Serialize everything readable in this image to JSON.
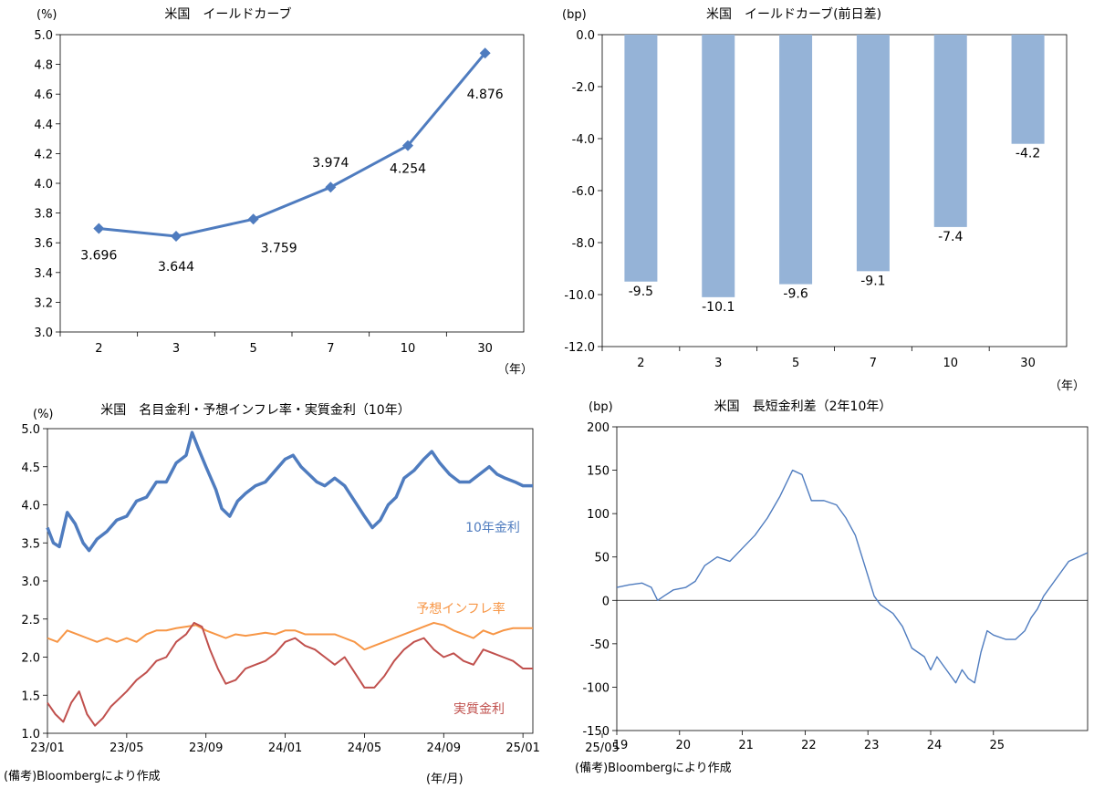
{
  "colors": {
    "line_blue": "#4f7cbf",
    "bar_blue": "#95b3d7",
    "inflation_orange": "#f79646",
    "real_red": "#c0504d",
    "spread_blue": "#4f7cbf",
    "axis": "#000000"
  },
  "notes": {
    "left": "(備考)Bloombergにより作成",
    "right": "(備考)Bloombergにより作成"
  },
  "chart_data": [
    {
      "id": "curve",
      "type": "line",
      "title": "米国　イールドカーブ",
      "y_unit": "(%)",
      "x_unit": "（年）",
      "categories": [
        "2",
        "3",
        "5",
        "7",
        "10",
        "30"
      ],
      "values": [
        3.696,
        3.644,
        3.759,
        3.974,
        4.254,
        4.876
      ],
      "data_labels": [
        "3.696",
        "3.644",
        "3.759",
        "3.974",
        "4.254",
        "4.876"
      ],
      "ylim": [
        3.0,
        5.0
      ],
      "y_ticks": [
        "3.0",
        "3.2",
        "3.4",
        "3.6",
        "3.8",
        "4.0",
        "4.2",
        "4.4",
        "4.6",
        "4.8",
        "5.0"
      ],
      "grid": false,
      "marker": "diamond"
    },
    {
      "id": "change",
      "type": "bar",
      "title": "米国　イールドカーブ(前日差)",
      "y_unit": "(bp)",
      "x_unit": "（年）",
      "categories": [
        "2",
        "3",
        "5",
        "7",
        "10",
        "30"
      ],
      "values": [
        -9.5,
        -10.1,
        -9.6,
        -9.1,
        -7.4,
        -4.2
      ],
      "data_labels": [
        "-9.5",
        "-10.1",
        "-9.6",
        "-9.1",
        "-7.4",
        "-4.2"
      ],
      "ylim": [
        -12.0,
        0.0
      ],
      "y_ticks": [
        "-12.0",
        "-10.0",
        "-8.0",
        "-6.0",
        "-4.0",
        "-2.0",
        "0.0"
      ],
      "grid": false
    },
    {
      "id": "rates",
      "type": "line",
      "title": "米国　名目金利・予想インフレ率・実質金利（10年）",
      "y_unit": "(%)",
      "x_unit": "(年/月)",
      "x_ticks": [
        "23/01",
        "23/05",
        "23/09",
        "24/01",
        "24/05",
        "24/09",
        "25/01",
        "25/05"
      ],
      "ylim": [
        1.0,
        5.0
      ],
      "y_ticks": [
        "1.0",
        "1.5",
        "2.0",
        "2.5",
        "3.0",
        "3.5",
        "4.0",
        "4.5",
        "5.0"
      ],
      "grid": false,
      "series": [
        {
          "name": "10年金利",
          "color": "#4f7cbf",
          "points": [
            [
              0,
              3.7
            ],
            [
              0.3,
              3.5
            ],
            [
              0.6,
              3.45
            ],
            [
              1,
              3.9
            ],
            [
              1.4,
              3.75
            ],
            [
              1.8,
              3.5
            ],
            [
              2.1,
              3.4
            ],
            [
              2.5,
              3.55
            ],
            [
              3,
              3.65
            ],
            [
              3.5,
              3.8
            ],
            [
              4,
              3.85
            ],
            [
              4.5,
              4.05
            ],
            [
              5,
              4.1
            ],
            [
              5.5,
              4.3
            ],
            [
              6,
              4.3
            ],
            [
              6.5,
              4.55
            ],
            [
              7,
              4.65
            ],
            [
              7.3,
              4.95
            ],
            [
              7.6,
              4.75
            ],
            [
              8,
              4.5
            ],
            [
              8.5,
              4.2
            ],
            [
              8.8,
              3.95
            ],
            [
              9.2,
              3.85
            ],
            [
              9.6,
              4.05
            ],
            [
              10,
              4.15
            ],
            [
              10.5,
              4.25
            ],
            [
              11,
              4.3
            ],
            [
              11.5,
              4.45
            ],
            [
              12,
              4.6
            ],
            [
              12.4,
              4.65
            ],
            [
              12.8,
              4.5
            ],
            [
              13.2,
              4.4
            ],
            [
              13.6,
              4.3
            ],
            [
              14,
              4.25
            ],
            [
              14.5,
              4.35
            ],
            [
              15,
              4.25
            ],
            [
              15.5,
              4.05
            ],
            [
              16,
              3.85
            ],
            [
              16.4,
              3.7
            ],
            [
              16.8,
              3.8
            ],
            [
              17.2,
              4.0
            ],
            [
              17.6,
              4.1
            ],
            [
              18,
              4.35
            ],
            [
              18.5,
              4.45
            ],
            [
              19,
              4.6
            ],
            [
              19.4,
              4.7
            ],
            [
              19.8,
              4.55
            ],
            [
              20.3,
              4.4
            ],
            [
              20.8,
              4.3
            ],
            [
              21.3,
              4.3
            ],
            [
              21.8,
              4.4
            ],
            [
              22.3,
              4.5
            ],
            [
              22.7,
              4.4
            ],
            [
              23.1,
              4.35
            ],
            [
              23.6,
              4.3
            ],
            [
              24,
              4.25
            ],
            [
              24.5,
              4.25
            ]
          ]
        },
        {
          "name": "予想インフレ率",
          "color": "#f79646",
          "points": [
            [
              0,
              2.25
            ],
            [
              0.5,
              2.2
            ],
            [
              1,
              2.35
            ],
            [
              1.5,
              2.3
            ],
            [
              2,
              2.25
            ],
            [
              2.5,
              2.2
            ],
            [
              3,
              2.25
            ],
            [
              3.5,
              2.2
            ],
            [
              4,
              2.25
            ],
            [
              4.5,
              2.2
            ],
            [
              5,
              2.3
            ],
            [
              5.5,
              2.35
            ],
            [
              6,
              2.35
            ],
            [
              6.5,
              2.38
            ],
            [
              7,
              2.4
            ],
            [
              7.5,
              2.42
            ],
            [
              8,
              2.35
            ],
            [
              8.5,
              2.3
            ],
            [
              9,
              2.25
            ],
            [
              9.5,
              2.3
            ],
            [
              10,
              2.28
            ],
            [
              10.5,
              2.3
            ],
            [
              11,
              2.32
            ],
            [
              11.5,
              2.3
            ],
            [
              12,
              2.35
            ],
            [
              12.5,
              2.35
            ],
            [
              13,
              2.3
            ],
            [
              13.5,
              2.3
            ],
            [
              14,
              2.3
            ],
            [
              14.5,
              2.3
            ],
            [
              15,
              2.25
            ],
            [
              15.5,
              2.2
            ],
            [
              16,
              2.1
            ],
            [
              16.5,
              2.15
            ],
            [
              17,
              2.2
            ],
            [
              17.5,
              2.25
            ],
            [
              18,
              2.3
            ],
            [
              18.5,
              2.35
            ],
            [
              19,
              2.4
            ],
            [
              19.5,
              2.45
            ],
            [
              20,
              2.42
            ],
            [
              20.5,
              2.35
            ],
            [
              21,
              2.3
            ],
            [
              21.5,
              2.25
            ],
            [
              22,
              2.35
            ],
            [
              22.5,
              2.3
            ],
            [
              23,
              2.35
            ],
            [
              23.5,
              2.38
            ],
            [
              24,
              2.38
            ],
            [
              24.5,
              2.38
            ]
          ]
        },
        {
          "name": "実質金利",
          "color": "#c0504d",
          "points": [
            [
              0,
              1.4
            ],
            [
              0.4,
              1.25
            ],
            [
              0.8,
              1.15
            ],
            [
              1.2,
              1.4
            ],
            [
              1.6,
              1.55
            ],
            [
              2,
              1.25
            ],
            [
              2.4,
              1.1
            ],
            [
              2.8,
              1.2
            ],
            [
              3.2,
              1.35
            ],
            [
              3.6,
              1.45
            ],
            [
              4,
              1.55
            ],
            [
              4.5,
              1.7
            ],
            [
              5,
              1.8
            ],
            [
              5.5,
              1.95
            ],
            [
              6,
              2.0
            ],
            [
              6.5,
              2.2
            ],
            [
              7,
              2.3
            ],
            [
              7.4,
              2.45
            ],
            [
              7.8,
              2.4
            ],
            [
              8.2,
              2.1
            ],
            [
              8.6,
              1.85
            ],
            [
              9,
              1.65
            ],
            [
              9.5,
              1.7
            ],
            [
              10,
              1.85
            ],
            [
              10.5,
              1.9
            ],
            [
              11,
              1.95
            ],
            [
              11.5,
              2.05
            ],
            [
              12,
              2.2
            ],
            [
              12.5,
              2.25
            ],
            [
              13,
              2.15
            ],
            [
              13.5,
              2.1
            ],
            [
              14,
              2.0
            ],
            [
              14.5,
              1.9
            ],
            [
              15,
              2.0
            ],
            [
              15.5,
              1.8
            ],
            [
              16,
              1.6
            ],
            [
              16.5,
              1.6
            ],
            [
              17,
              1.75
            ],
            [
              17.5,
              1.95
            ],
            [
              18,
              2.1
            ],
            [
              18.5,
              2.2
            ],
            [
              19,
              2.25
            ],
            [
              19.5,
              2.1
            ],
            [
              20,
              2.0
            ],
            [
              20.5,
              2.05
            ],
            [
              21,
              1.95
            ],
            [
              21.5,
              1.9
            ],
            [
              22,
              2.1
            ],
            [
              22.5,
              2.05
            ],
            [
              23,
              2.0
            ],
            [
              23.5,
              1.95
            ],
            [
              24,
              1.85
            ],
            [
              24.5,
              1.85
            ]
          ]
        }
      ]
    },
    {
      "id": "spread",
      "type": "line",
      "title": "米国　長短金利差（2年10年）",
      "y_unit": "(bp)",
      "x_ticks": [
        "19",
        "20",
        "21",
        "22",
        "23",
        "24",
        "25"
      ],
      "ylim": [
        -150,
        200
      ],
      "y_ticks": [
        "-150",
        "-100",
        "-50",
        "0",
        "50",
        "100",
        "150",
        "200"
      ],
      "grid": false,
      "series": [
        {
          "name": "",
          "color": "#4f7cbf",
          "points": [
            [
              0,
              15
            ],
            [
              0.2,
              18
            ],
            [
              0.4,
              20
            ],
            [
              0.55,
              15
            ],
            [
              0.65,
              0
            ],
            [
              0.75,
              5
            ],
            [
              0.9,
              12
            ],
            [
              1.1,
              15
            ],
            [
              1.25,
              22
            ],
            [
              1.4,
              40
            ],
            [
              1.6,
              50
            ],
            [
              1.8,
              45
            ],
            [
              2.0,
              60
            ],
            [
              2.2,
              75
            ],
            [
              2.4,
              95
            ],
            [
              2.6,
              120
            ],
            [
              2.8,
              150
            ],
            [
              2.95,
              145
            ],
            [
              3.1,
              115
            ],
            [
              3.3,
              115
            ],
            [
              3.5,
              110
            ],
            [
              3.65,
              95
            ],
            [
              3.8,
              75
            ],
            [
              3.95,
              40
            ],
            [
              4.1,
              5
            ],
            [
              4.2,
              -5
            ],
            [
              4.4,
              -15
            ],
            [
              4.55,
              -30
            ],
            [
              4.7,
              -55
            ],
            [
              4.9,
              -65
            ],
            [
              5.0,
              -80
            ],
            [
              5.1,
              -65
            ],
            [
              5.25,
              -80
            ],
            [
              5.4,
              -95
            ],
            [
              5.5,
              -80
            ],
            [
              5.6,
              -90
            ],
            [
              5.7,
              -95
            ],
            [
              5.8,
              -60
            ],
            [
              5.9,
              -35
            ],
            [
              6.0,
              -40
            ],
            [
              6.2,
              -45
            ],
            [
              6.35,
              -45
            ],
            [
              6.5,
              -35
            ],
            [
              6.6,
              -20
            ],
            [
              6.7,
              -10
            ],
            [
              6.8,
              5
            ],
            [
              6.95,
              20
            ],
            [
              7.05,
              30
            ],
            [
              7.2,
              45
            ],
            [
              7.35,
              50
            ],
            [
              7.5,
              55
            ]
          ]
        }
      ]
    }
  ]
}
